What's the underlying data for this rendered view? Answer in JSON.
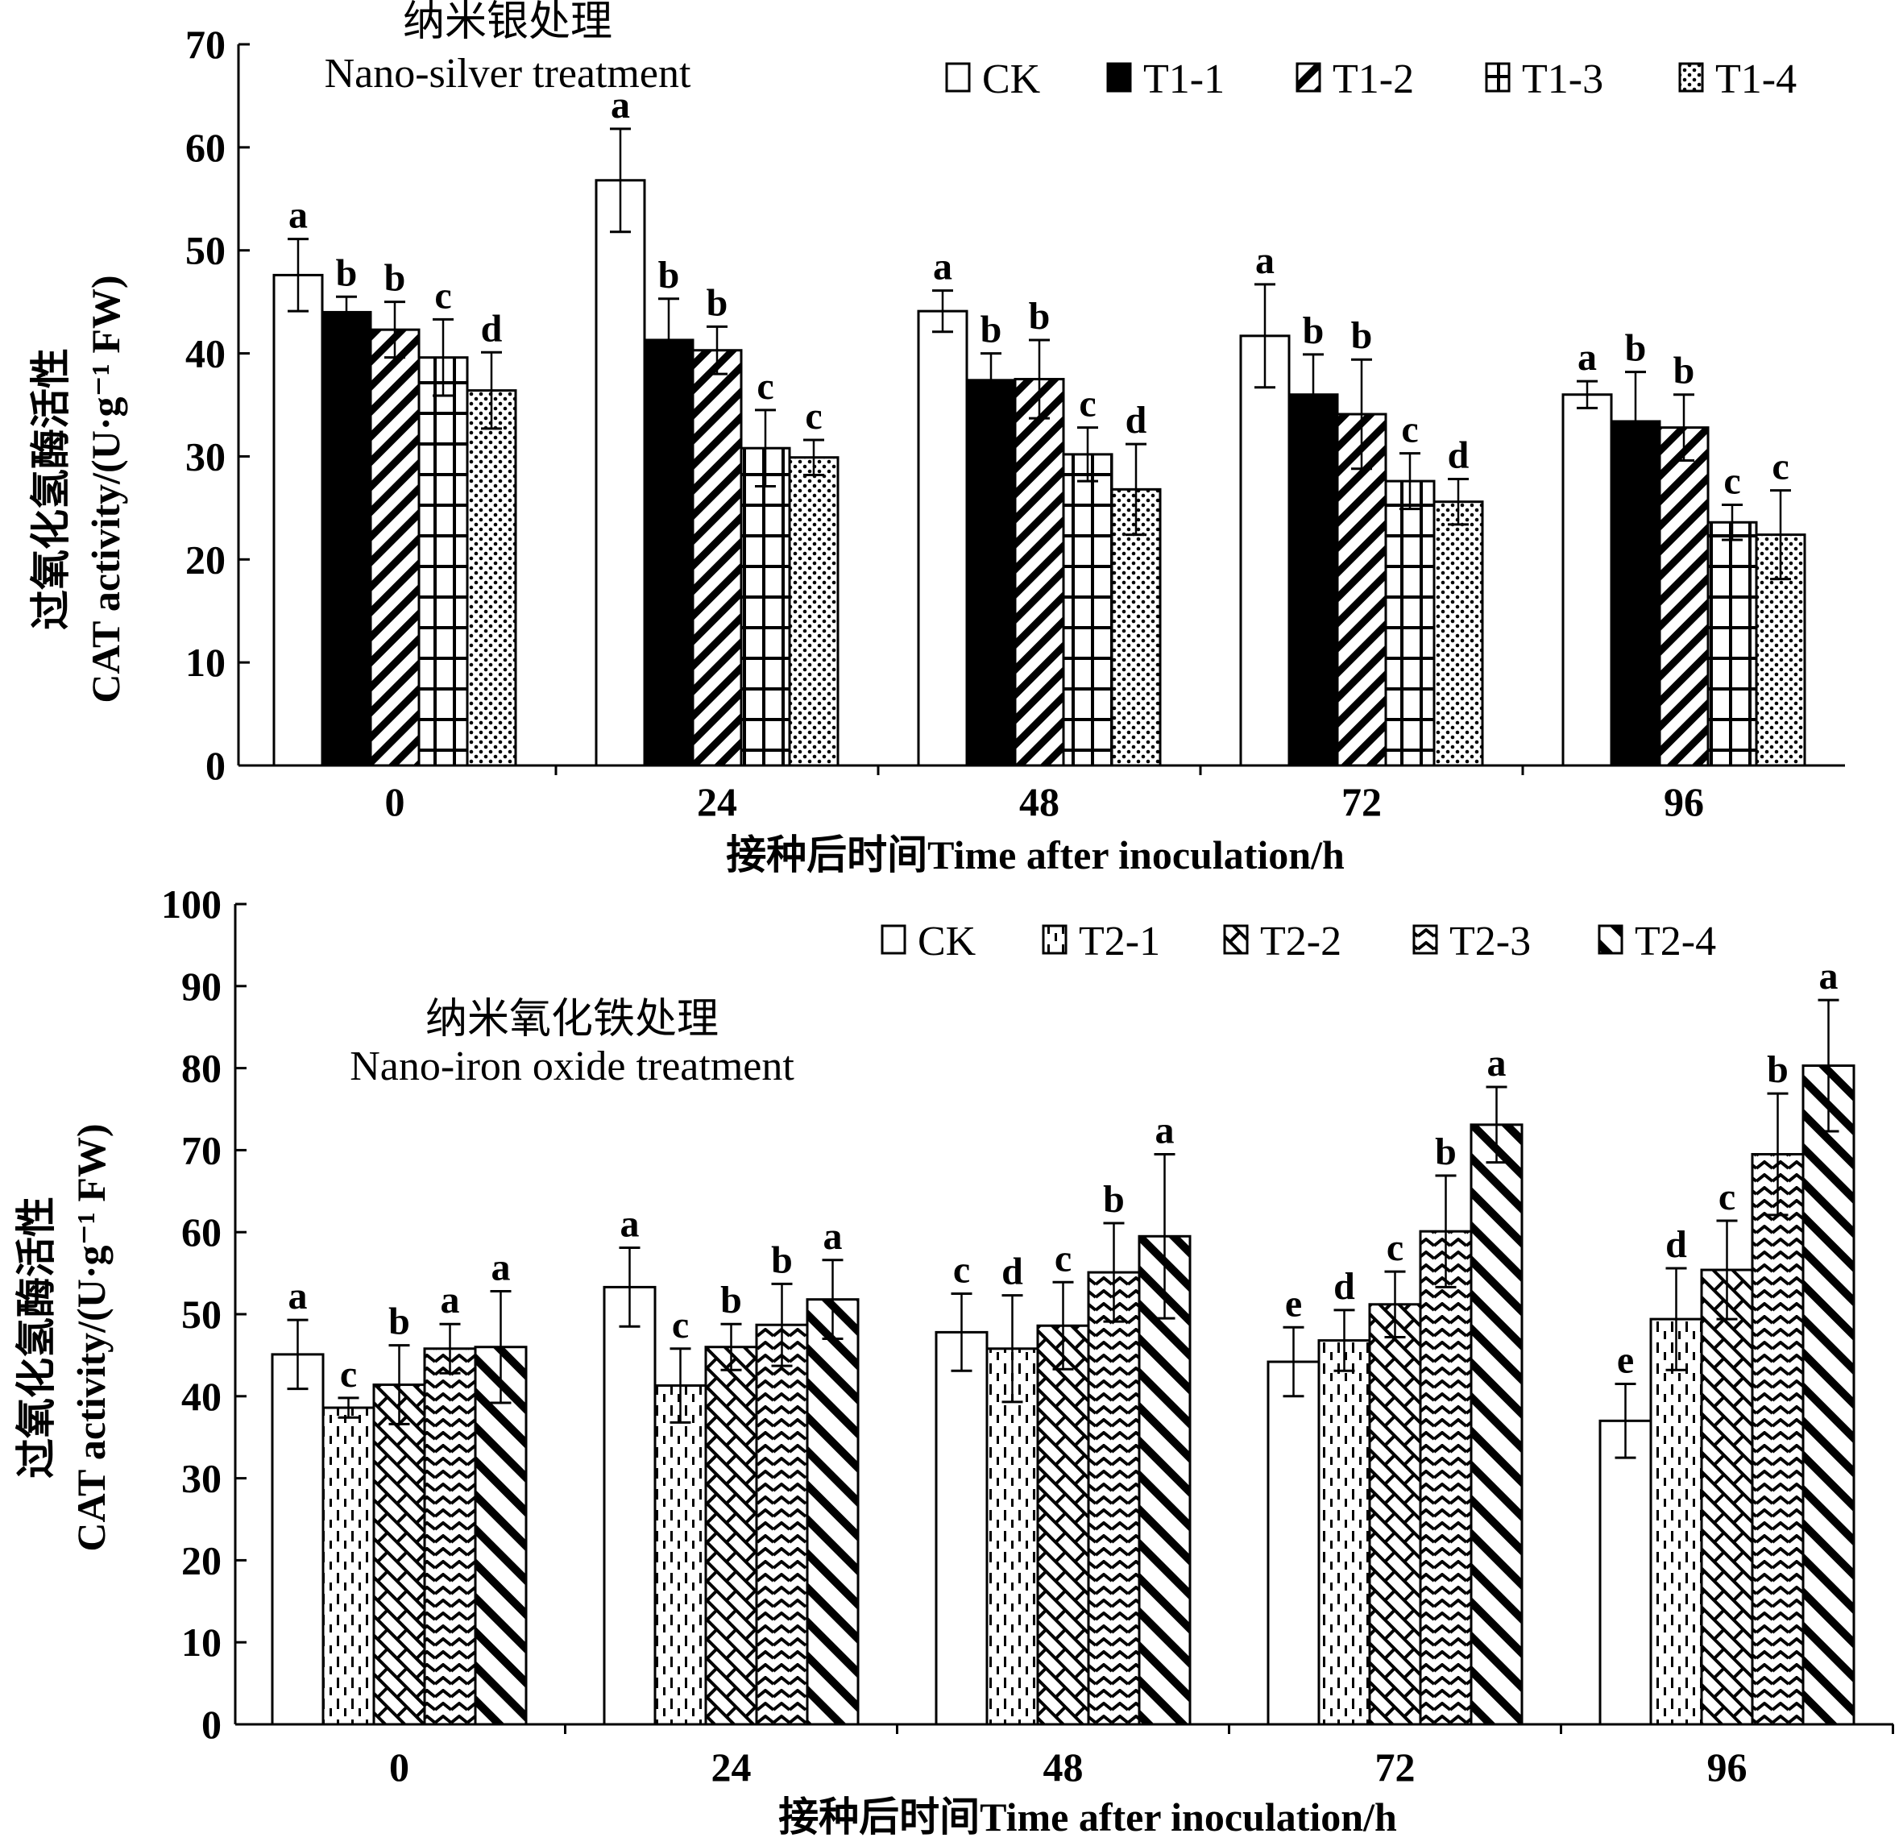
{
  "chart_data": [
    {
      "type": "bar",
      "title": "纳米银处理",
      "subtitle": "Nano-silver treatment",
      "xlabel": "接种后时间Time after inoculation/h",
      "ylabel_cn": "过氧化氢酶活性",
      "ylabel_en": "CAT activity/(U·g⁻¹ FW)",
      "ylim": [
        0,
        70
      ],
      "yticks": [
        0,
        10,
        20,
        30,
        40,
        50,
        60,
        70
      ],
      "categories": [
        "0",
        "24",
        "48",
        "72",
        "96"
      ],
      "legend_position": "top-right",
      "grid": false,
      "series": [
        {
          "name": "CK",
          "pattern": "empty",
          "values": [
            47.6,
            56.8,
            44.1,
            41.7,
            36.0
          ],
          "errors": [
            3.5,
            5.0,
            2.0,
            5.0,
            1.3
          ],
          "letters": [
            "a",
            "a",
            "a",
            "a",
            "a"
          ]
        },
        {
          "name": "T1-1",
          "pattern": "solid",
          "values": [
            44.0,
            41.3,
            37.4,
            36.0,
            33.4
          ],
          "errors": [
            1.5,
            4.0,
            2.6,
            3.9,
            4.8
          ],
          "letters": [
            "b",
            "b",
            "b",
            "b",
            "b"
          ]
        },
        {
          "name": "T1-2",
          "pattern": "diagonal",
          "values": [
            42.3,
            40.3,
            37.5,
            34.1,
            32.8
          ],
          "errors": [
            2.7,
            2.3,
            3.8,
            5.3,
            3.2
          ],
          "letters": [
            "b",
            "b",
            "b",
            "b",
            "b"
          ]
        },
        {
          "name": "T1-3",
          "pattern": "grid",
          "values": [
            39.6,
            30.8,
            30.2,
            27.6,
            23.6
          ],
          "errors": [
            3.7,
            3.7,
            2.6,
            2.7,
            1.7
          ],
          "letters": [
            "c",
            "c",
            "c",
            "c",
            "c"
          ]
        },
        {
          "name": "T1-4",
          "pattern": "dots",
          "values": [
            36.4,
            29.9,
            26.8,
            25.6,
            22.4
          ],
          "errors": [
            3.7,
            1.7,
            4.4,
            2.2,
            4.3
          ],
          "letters": [
            "d",
            "c",
            "d",
            "d",
            "c"
          ]
        }
      ]
    },
    {
      "type": "bar",
      "title": "纳米氧化铁处理",
      "subtitle": "Nano-iron oxide treatment",
      "xlabel": "接种后时间Time after inoculation/h",
      "ylabel_cn": "过氧化氢酶活性",
      "ylabel_en": "CAT activity/(U·g⁻¹ FW)",
      "ylim": [
        0,
        100
      ],
      "yticks": [
        0,
        10,
        20,
        30,
        40,
        50,
        60,
        70,
        80,
        90,
        100
      ],
      "categories": [
        "0",
        "24",
        "48",
        "72",
        "96"
      ],
      "legend_position": "top-right",
      "grid": false,
      "series": [
        {
          "name": "CK",
          "pattern": "empty",
          "values": [
            45.1,
            53.3,
            47.8,
            44.2,
            37.0
          ],
          "errors": [
            4.2,
            4.8,
            4.7,
            4.2,
            4.5
          ],
          "letters": [
            "a",
            "a",
            "c",
            "e",
            "e"
          ]
        },
        {
          "name": "T2-1",
          "pattern": "dashes",
          "values": [
            38.6,
            41.3,
            45.8,
            46.8,
            49.4
          ],
          "errors": [
            1.2,
            4.5,
            6.5,
            3.7,
            6.2
          ],
          "letters": [
            "c",
            "c",
            "d",
            "d",
            "d"
          ]
        },
        {
          "name": "T2-2",
          "pattern": "brick",
          "values": [
            41.4,
            46.0,
            48.6,
            51.2,
            55.4
          ],
          "errors": [
            4.8,
            2.8,
            5.3,
            4.0,
            6.0
          ],
          "letters": [
            "b",
            "b",
            "c",
            "c",
            "c"
          ]
        },
        {
          "name": "T2-3",
          "pattern": "zigzag",
          "values": [
            45.8,
            48.7,
            55.1,
            60.1,
            69.5
          ],
          "errors": [
            3.0,
            5.0,
            6.0,
            6.8,
            7.4
          ],
          "letters": [
            "a",
            "b",
            "b",
            "b",
            "b"
          ]
        },
        {
          "name": "T2-4",
          "pattern": "wide-diagonal",
          "values": [
            46.0,
            51.8,
            59.5,
            73.1,
            80.3
          ],
          "errors": [
            6.8,
            4.8,
            10.0,
            4.6,
            8.0
          ],
          "letters": [
            "a",
            "a",
            "a",
            "a",
            "a"
          ]
        }
      ]
    }
  ]
}
